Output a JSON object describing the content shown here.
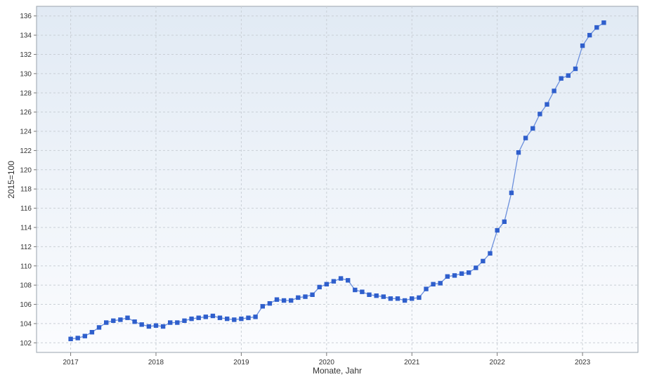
{
  "chart_data": {
    "type": "line",
    "xlabel": "Monate, Jahr",
    "ylabel": "2015=100",
    "ylim": [
      101,
      137
    ],
    "yticks": [
      102,
      104,
      106,
      108,
      110,
      112,
      114,
      116,
      118,
      120,
      122,
      124,
      126,
      128,
      130,
      132,
      134,
      136
    ],
    "xlim": [
      2016.6,
      2023.65
    ],
    "xticks": [
      2017,
      2018,
      2019,
      2020,
      2021,
      2022,
      2023
    ],
    "xtick_labels": [
      "2017",
      "2018",
      "2019",
      "2020",
      "2021",
      "2022",
      "2023"
    ],
    "grid": true,
    "line_color": "#6b8fdc",
    "marker_color": "#2f5fcc",
    "series": [
      {
        "name": "",
        "x_start": "2017-01",
        "values": [
          102.4,
          102.5,
          102.7,
          103.1,
          103.6,
          104.1,
          104.3,
          104.4,
          104.6,
          104.2,
          103.9,
          103.7,
          103.8,
          103.7,
          104.1,
          104.1,
          104.3,
          104.5,
          104.6,
          104.7,
          104.8,
          104.6,
          104.5,
          104.4,
          104.5,
          104.6,
          104.7,
          105.8,
          106.1,
          106.5,
          106.4,
          106.4,
          106.7,
          106.8,
          107.0,
          107.8,
          108.1,
          108.4,
          108.7,
          108.5,
          107.5,
          107.3,
          107.0,
          106.9,
          106.8,
          106.6,
          106.6,
          106.4,
          106.6,
          106.7,
          107.6,
          108.1,
          108.2,
          108.9,
          109.0,
          109.2,
          109.3,
          109.8,
          110.5,
          111.3,
          113.7,
          114.6,
          117.6,
          121.8,
          123.3,
          124.3,
          125.8,
          126.8,
          128.2,
          129.5,
          129.8,
          130.5,
          132.9,
          134.0,
          134.8,
          135.3
        ]
      }
    ]
  }
}
